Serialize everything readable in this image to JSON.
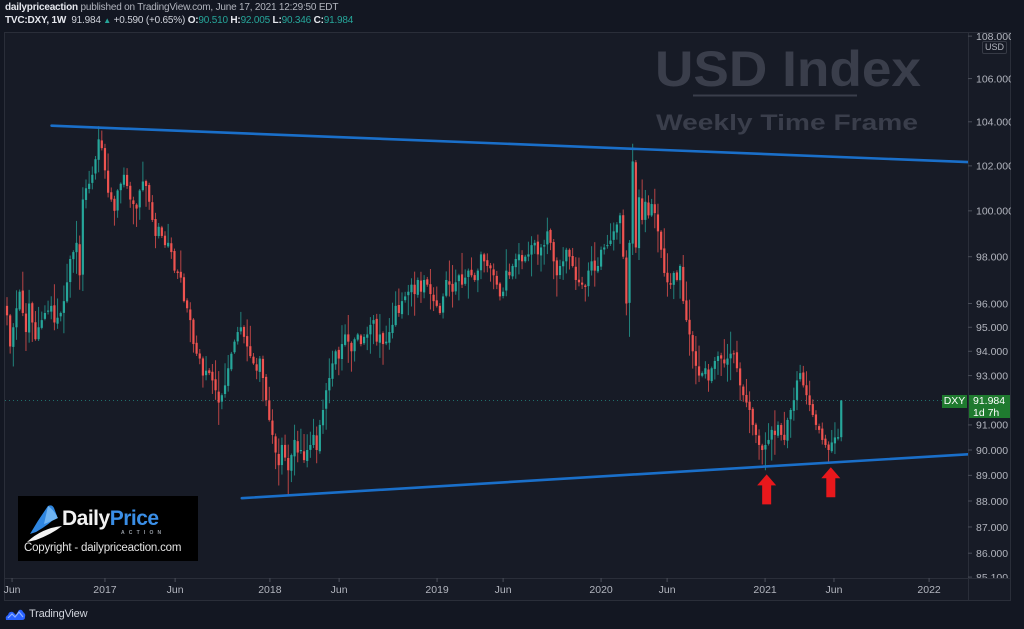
{
  "header": {
    "author": "dailypriceaction",
    "published": "published on TradingView.com, June 17, 2021 12:29:50 EDT"
  },
  "symbol_bar": {
    "symbol": "TVC:DXY, 1W",
    "last": "91.984",
    "direction_icon": "▲",
    "change": "+0.590 (+0.65%)",
    "o_label": "O:",
    "o": "90.510",
    "h_label": "H:",
    "h": "92.005",
    "l_label": "L:",
    "l": "90.346",
    "c_label": "C:",
    "c": "91.984"
  },
  "watermark": {
    "title": "USD Index",
    "subtitle": "Weekly Time Frame"
  },
  "logo": {
    "brand_daily": "Daily",
    "brand_price": "Price",
    "brand_action": "ACTION",
    "copyright": "Copyright - dailypriceaction.com"
  },
  "price_scale": {
    "currency": "USD",
    "labels": [
      {
        "text": "108.000",
        "value": 108.0
      },
      {
        "text": "106.000",
        "value": 106.0
      },
      {
        "text": "104.000",
        "value": 104.0
      },
      {
        "text": "102.000",
        "value": 102.0
      },
      {
        "text": "100.000",
        "value": 100.0
      },
      {
        "text": "98.000",
        "value": 98.0
      },
      {
        "text": "96.000",
        "value": 96.0
      },
      {
        "text": "95.000",
        "value": 95.0
      },
      {
        "text": "94.000",
        "value": 94.0
      },
      {
        "text": "93.000",
        "value": 93.0
      },
      {
        "text": "91.000",
        "value": 91.0
      },
      {
        "text": "90.000",
        "value": 90.0
      },
      {
        "text": "89.000",
        "value": 89.0
      },
      {
        "text": "88.000",
        "value": 88.0
      },
      {
        "text": "87.000",
        "value": 87.0
      },
      {
        "text": "86.000",
        "value": 86.0
      },
      {
        "text": "85.100",
        "value": 85.1
      }
    ]
  },
  "time_scale": {
    "labels": [
      {
        "text": "Jun",
        "week": 1.6
      },
      {
        "text": "2017",
        "week": 31.0
      },
      {
        "text": "Jun",
        "week": 53.2
      },
      {
        "text": "2018",
        "week": 83.2
      },
      {
        "text": "Jun",
        "week": 105.1
      },
      {
        "text": "2019",
        "week": 136.1
      },
      {
        "text": "Jun",
        "week": 157.0
      },
      {
        "text": "2020",
        "week": 188.0
      },
      {
        "text": "Jun",
        "week": 208.9
      },
      {
        "text": "2021",
        "week": 239.9
      },
      {
        "text": "Jun",
        "week": 261.7
      },
      {
        "text": "2022",
        "week": 291.8
      }
    ]
  },
  "price_label": {
    "symbol": "DXY",
    "price": "91.984",
    "countdown": "1d 7h"
  },
  "footer": {
    "brand": "TradingView"
  },
  "colors": {
    "bull": "#26a69a",
    "bear": "#ef5350",
    "trendline": "#1a6fc9",
    "arrow": "#e8181c",
    "price_label_bg": "#1f7a2f",
    "background": "#131722",
    "pane": "#171b26",
    "watermark": "#3a3e4b"
  },
  "chart_data": {
    "type": "candlestick",
    "title": "USD Index",
    "subtitle": "Weekly Time Frame",
    "symbol": "TVC:DXY",
    "interval": "1W",
    "xlabel": "",
    "ylabel": "USD",
    "y_scale": "log",
    "ylim": [
      85.1,
      108.0
    ],
    "x_ticks": [
      "Jun",
      "2017",
      "Jun",
      "2018",
      "Jun",
      "2019",
      "Jun",
      "2020",
      "Jun",
      "2021",
      "Jun",
      "2022"
    ],
    "y_ticks": [
      85.1,
      86,
      87,
      88,
      89,
      90,
      91,
      93,
      94,
      95,
      96,
      98,
      100,
      102,
      104,
      106,
      108
    ],
    "grid": false,
    "legend": "none",
    "last_bar": {
      "open": 90.51,
      "high": 92.005,
      "low": 90.346,
      "close": 91.984,
      "change": 0.59,
      "change_pct": 0.65
    },
    "weekly_bars_note": "[week_index, close, high_override, low_override]",
    "weekly_bars": [
      [
        0,
        95.5
      ],
      [
        1,
        94.2
      ],
      [
        2,
        95.0
      ],
      [
        3,
        95.8
      ],
      [
        4,
        96.5
      ],
      [
        5,
        95.6
      ],
      [
        6,
        94.8
      ],
      [
        7,
        96.0
      ],
      [
        8,
        95.2
      ],
      [
        9,
        94.5
      ],
      [
        10,
        95.0
      ],
      [
        11,
        95.3
      ],
      [
        12,
        95.6
      ],
      [
        13,
        95.7
      ],
      [
        14,
        95.9
      ],
      [
        15,
        95.2
      ],
      [
        16,
        95.4
      ],
      [
        17,
        95.6
      ],
      [
        18,
        96.1
      ],
      [
        19,
        96.9
      ],
      [
        20,
        97.9
      ],
      [
        21,
        98.2
      ],
      [
        22,
        98.6
      ],
      [
        23,
        97.2
      ],
      [
        24,
        100.5
      ],
      [
        25,
        101.0
      ],
      [
        26,
        101.2
      ],
      [
        27,
        101.6
      ],
      [
        28,
        102.3
      ],
      [
        29,
        103.2,
        103.8,
        null
      ],
      [
        30,
        102.8,
        103.6,
        null
      ],
      [
        31,
        101.8
      ],
      [
        32,
        100.8
      ],
      [
        33,
        100.5
      ],
      [
        34,
        100.0
      ],
      [
        35,
        100.9
      ],
      [
        36,
        101.2
      ],
      [
        37,
        101.6
      ],
      [
        38,
        101.1
      ],
      [
        39,
        100.5
      ],
      [
        40,
        100.3
      ],
      [
        41,
        100.1
      ],
      [
        42,
        100.9
      ],
      [
        43,
        101.3
      ],
      [
        44,
        101.1
      ],
      [
        45,
        100.4
      ],
      [
        46,
        99.6
      ],
      [
        47,
        98.9
      ],
      [
        48,
        99.3
      ],
      [
        49,
        98.9
      ],
      [
        50,
        98.5
      ],
      [
        51,
        98.6
      ],
      [
        52,
        98.2
      ],
      [
        53,
        97.4
      ],
      [
        54,
        97.3
      ],
      [
        55,
        97.1
      ],
      [
        56,
        96.1
      ],
      [
        57,
        95.8
      ],
      [
        58,
        95.3
      ],
      [
        59,
        94.3
      ],
      [
        60,
        93.9
      ],
      [
        61,
        93.7
      ],
      [
        62,
        93.0
      ],
      [
        63,
        93.2
      ],
      [
        64,
        93.1
      ],
      [
        65,
        92.8
      ],
      [
        66,
        92.4
      ],
      [
        67,
        91.9,
        null,
        91.0
      ],
      [
        68,
        92.2
      ],
      [
        69,
        92.6
      ],
      [
        70,
        93.3
      ],
      [
        71,
        93.9
      ],
      [
        72,
        94.4
      ],
      [
        73,
        94.8
      ],
      [
        74,
        95.0
      ],
      [
        75,
        94.6
      ],
      [
        76,
        94.2
      ],
      [
        77,
        93.8
      ],
      [
        78,
        93.5
      ],
      [
        79,
        93.2
      ],
      [
        80,
        93.7
      ],
      [
        81,
        92.9
      ],
      [
        82,
        92.0
      ],
      [
        83,
        91.2
      ],
      [
        84,
        90.6
      ],
      [
        85,
        89.9
      ],
      [
        86,
        89.4
      ],
      [
        87,
        90.2
      ],
      [
        88,
        89.7
      ],
      [
        89,
        89.2,
        null,
        88.25
      ],
      [
        90,
        89.8
      ],
      [
        91,
        90.4
      ],
      [
        92,
        89.9
      ],
      [
        93,
        90.0
      ],
      [
        94,
        89.6
      ],
      [
        95,
        90.0
      ],
      [
        96,
        90.2
      ],
      [
        97,
        90.6
      ],
      [
        98,
        90.0
      ],
      [
        99,
        91.0
      ],
      [
        100,
        91.6
      ],
      [
        101,
        92.4
      ],
      [
        102,
        92.9
      ],
      [
        103,
        93.5
      ],
      [
        104,
        94.0
      ],
      [
        105,
        93.7
      ],
      [
        106,
        94.3
      ],
      [
        107,
        94.7
      ],
      [
        108,
        94.4
      ],
      [
        109,
        94.0
      ],
      [
        110,
        94.5
      ],
      [
        111,
        94.7
      ],
      [
        112,
        94.3
      ],
      [
        113,
        94.6
      ],
      [
        114,
        94.7
      ],
      [
        115,
        95.1
      ],
      [
        116,
        95.3
      ],
      [
        117,
        94.4
      ],
      [
        118,
        94.7
      ],
      [
        119,
        94.3
      ],
      [
        120,
        94.4
      ],
      [
        121,
        94.8
      ],
      [
        122,
        95.1
      ],
      [
        123,
        95.9
      ],
      [
        124,
        95.6
      ],
      [
        125,
        96.1
      ],
      [
        126,
        96.3
      ],
      [
        127,
        96.5
      ],
      [
        128,
        96.8
      ],
      [
        129,
        96.4
      ],
      [
        130,
        97.0
      ],
      [
        131,
        96.5
      ],
      [
        132,
        97.0
      ],
      [
        133,
        96.8
      ],
      [
        134,
        96.4
      ],
      [
        135,
        96.1
      ],
      [
        136,
        95.9
      ],
      [
        137,
        95.6
      ],
      [
        138,
        96.3
      ],
      [
        139,
        97.0
      ],
      [
        140,
        96.8
      ],
      [
        141,
        96.5
      ],
      [
        142,
        96.9
      ],
      [
        143,
        97.2
      ],
      [
        144,
        96.8
      ],
      [
        145,
        97.1
      ],
      [
        146,
        97.4
      ],
      [
        147,
        97.2
      ],
      [
        148,
        97.0
      ],
      [
        149,
        97.4
      ],
      [
        150,
        98.1
      ],
      [
        151,
        97.8
      ],
      [
        152,
        97.6
      ],
      [
        153,
        97.5
      ],
      [
        154,
        97.2
      ],
      [
        155,
        96.8
      ],
      [
        156,
        96.3
      ],
      [
        157,
        96.5
      ],
      [
        158,
        97.4
      ],
      [
        159,
        97.2
      ],
      [
        160,
        97.6
      ],
      [
        161,
        97.9
      ],
      [
        162,
        98.1
      ],
      [
        163,
        97.8
      ],
      [
        164,
        98.0
      ],
      [
        165,
        98.1
      ],
      [
        166,
        98.5
      ],
      [
        167,
        98.6
      ],
      [
        168,
        98.1
      ],
      [
        169,
        98.4
      ],
      [
        170,
        98.5
      ],
      [
        171,
        99.1,
        99.7,
        null
      ],
      [
        172,
        98.6
      ],
      [
        173,
        97.8
      ],
      [
        174,
        97.2
      ],
      [
        175,
        97.6
      ],
      [
        176,
        97.8
      ],
      [
        177,
        98.3
      ],
      [
        178,
        98.0
      ],
      [
        179,
        97.6
      ],
      [
        180,
        97.0
      ],
      [
        181,
        96.9
      ],
      [
        182,
        96.8
      ],
      [
        183,
        96.7
      ],
      [
        184,
        97.4
      ],
      [
        185,
        97.8
      ],
      [
        186,
        97.4
      ],
      [
        187,
        97.6
      ],
      [
        188,
        98.3
      ],
      [
        189,
        98.4
      ],
      [
        190,
        98.5
      ],
      [
        191,
        98.7
      ],
      [
        192,
        99.1
      ],
      [
        193,
        99.4
      ],
      [
        194,
        99.8
      ],
      [
        195,
        98.0
      ],
      [
        196,
        96.0,
        null,
        95.5
      ],
      [
        197,
        98.6,
        null,
        94.6
      ],
      [
        198,
        102.2,
        103.0,
        null
      ],
      [
        199,
        98.4
      ],
      [
        200,
        100.6
      ],
      [
        201,
        99.6
      ],
      [
        202,
        100.4
      ],
      [
        203,
        99.8
      ],
      [
        204,
        100.3
      ],
      [
        205,
        99.9
      ],
      [
        206,
        99.1
      ],
      [
        207,
        98.3
      ],
      [
        208,
        97.3
      ],
      [
        209,
        96.9
      ],
      [
        210,
        96.8
      ],
      [
        211,
        97.3
      ],
      [
        212,
        97.0
      ],
      [
        213,
        97.6
      ],
      [
        214,
        96.1
      ],
      [
        215,
        95.3
      ],
      [
        216,
        94.7
      ],
      [
        217,
        94.0
      ],
      [
        218,
        93.4
      ],
      [
        219,
        93.0
      ],
      [
        220,
        93.1
      ],
      [
        221,
        93.3
      ],
      [
        222,
        92.8
      ],
      [
        223,
        93.3
      ],
      [
        224,
        93.6
      ],
      [
        225,
        93.8
      ],
      [
        226,
        93.7
      ],
      [
        227,
        93.5
      ],
      [
        228,
        93.7
      ],
      [
        229,
        93.9
      ],
      [
        230,
        93.9
      ],
      [
        231,
        93.3
      ],
      [
        232,
        92.6
      ],
      [
        233,
        92.2
      ],
      [
        234,
        91.9
      ],
      [
        235,
        91.6
      ],
      [
        236,
        91.0
      ],
      [
        237,
        90.6
      ],
      [
        238,
        90.2
      ],
      [
        239,
        90.0
      ],
      [
        240,
        90.2,
        null,
        89.2
      ],
      [
        241,
        90.4
      ],
      [
        242,
        90.8
      ],
      [
        243,
        90.6
      ],
      [
        244,
        91.0
      ],
      [
        245,
        90.6
      ],
      [
        246,
        90.4
      ],
      [
        247,
        91.2
      ],
      [
        248,
        91.6
      ],
      [
        249,
        92.0
      ],
      [
        250,
        92.8
      ],
      [
        251,
        93.1,
        93.44,
        null
      ],
      [
        252,
        92.6
      ],
      [
        253,
        92.2
      ],
      [
        254,
        91.8
      ],
      [
        255,
        91.4
      ],
      [
        256,
        91.0
      ],
      [
        257,
        90.8
      ],
      [
        258,
        90.4
      ],
      [
        259,
        90.2
      ],
      [
        260,
        90.0,
        null,
        89.53
      ],
      [
        261,
        90.3
      ],
      [
        262,
        90.5
      ],
      [
        263,
        90.51
      ],
      [
        264,
        91.984,
        92.005,
        90.346
      ]
    ],
    "trendlines": [
      {
        "name": "resistance",
        "from": {
          "week": 14.1,
          "price": 103.82
        },
        "to": {
          "week": 304.1,
          "price": 102.17
        }
      },
      {
        "name": "support",
        "from": {
          "week": 74.3,
          "price": 88.11
        },
        "to": {
          "week": 304.1,
          "price": 89.83
        }
      }
    ],
    "annotations": [
      {
        "type": "arrow-up",
        "week": 240.4,
        "price": 89.04
      },
      {
        "type": "arrow-up",
        "week": 260.7,
        "price": 89.32
      }
    ],
    "current_price_line": 91.984
  }
}
